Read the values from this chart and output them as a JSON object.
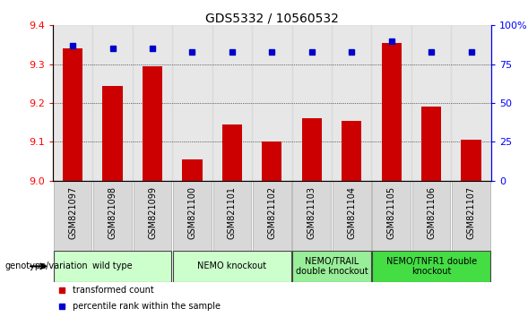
{
  "title": "GDS5332 / 10560532",
  "samples": [
    "GSM821097",
    "GSM821098",
    "GSM821099",
    "GSM821100",
    "GSM821101",
    "GSM821102",
    "GSM821103",
    "GSM821104",
    "GSM821105",
    "GSM821106",
    "GSM821107"
  ],
  "bar_values": [
    9.34,
    9.245,
    9.295,
    9.055,
    9.145,
    9.1,
    9.16,
    9.155,
    9.355,
    9.19,
    9.105
  ],
  "percentile_values": [
    87,
    85,
    85,
    83,
    83,
    83,
    83,
    83,
    90,
    83,
    83
  ],
  "bar_color": "#cc0000",
  "dot_color": "#0000cc",
  "ylim_left": [
    9.0,
    9.4
  ],
  "ylim_right": [
    0,
    100
  ],
  "yticks_left": [
    9.0,
    9.1,
    9.2,
    9.3,
    9.4
  ],
  "ytick_labels_right": [
    "0",
    "25",
    "50",
    "75",
    "100%"
  ],
  "groups": [
    {
      "label": "wild type",
      "start": 0,
      "end": 2,
      "color": "#ccffcc"
    },
    {
      "label": "NEMO knockout",
      "start": 3,
      "end": 5,
      "color": "#ccffcc"
    },
    {
      "label": "NEMO/TRAIL\ndouble knockout",
      "start": 6,
      "end": 7,
      "color": "#99ee99"
    },
    {
      "label": "NEMO/TNFR1 double\nknockout",
      "start": 8,
      "end": 10,
      "color": "#44dd44"
    }
  ],
  "genotype_label": "genotype/variation",
  "legend_bar_label": "transformed count",
  "legend_dot_label": "percentile rank within the sample",
  "title_fontsize": 10,
  "tick_fontsize": 8,
  "sample_fontsize": 7,
  "group_fontsize": 7
}
